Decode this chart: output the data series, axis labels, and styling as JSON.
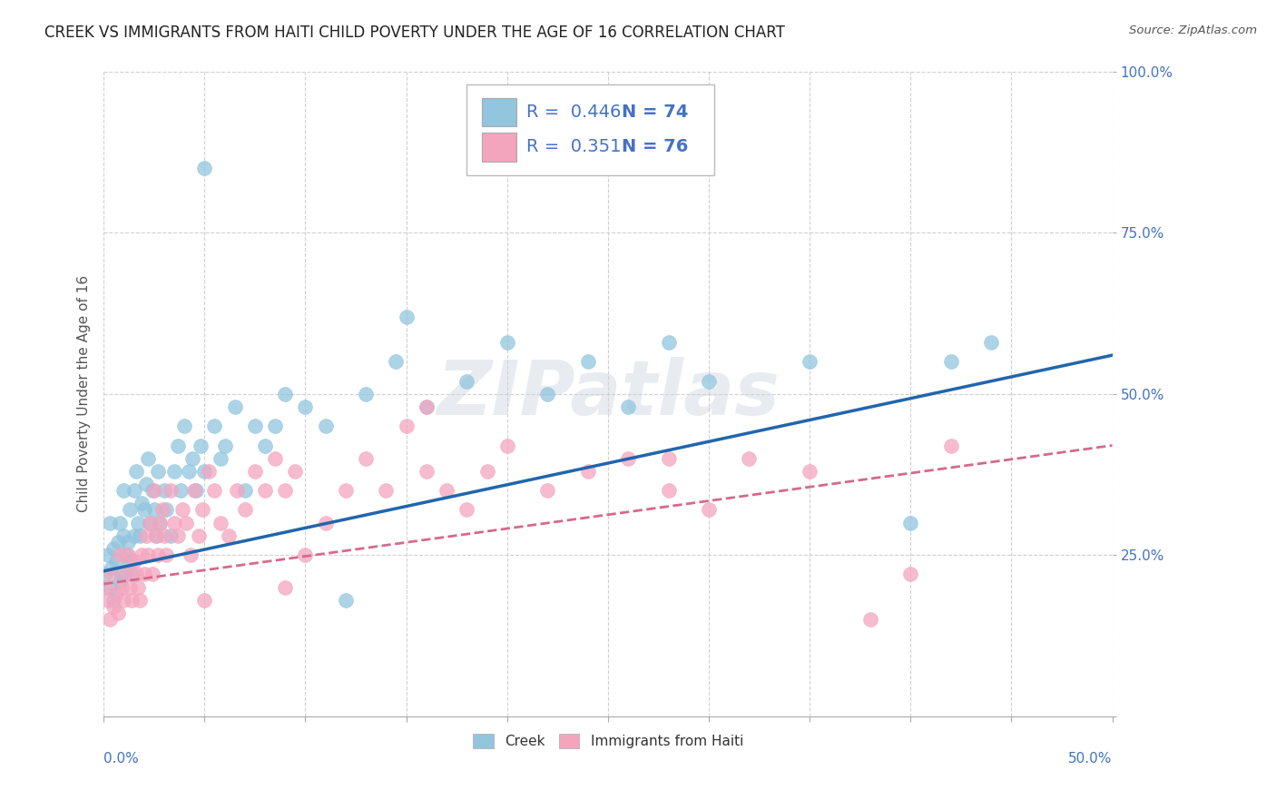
{
  "title": "CREEK VS IMMIGRANTS FROM HAITI CHILD POVERTY UNDER THE AGE OF 16 CORRELATION CHART",
  "source": "Source: ZipAtlas.com",
  "ylabel": "Child Poverty Under the Age of 16",
  "xlim": [
    0,
    0.5
  ],
  "ylim": [
    0,
    1.0
  ],
  "creek_color": "#92c5de",
  "haiti_color": "#f4a5be",
  "creek_line_color": "#2166ac",
  "haiti_line_color": "#d6698a",
  "axis_label_color": "#4472c4",
  "background_color": "#ffffff",
  "watermark": "ZIPatlas",
  "creek_scatter_x": [
    0.001,
    0.002,
    0.003,
    0.003,
    0.004,
    0.005,
    0.005,
    0.006,
    0.007,
    0.008,
    0.008,
    0.009,
    0.01,
    0.01,
    0.011,
    0.012,
    0.013,
    0.013,
    0.014,
    0.015,
    0.015,
    0.016,
    0.017,
    0.018,
    0.019,
    0.02,
    0.021,
    0.022,
    0.023,
    0.024,
    0.025,
    0.026,
    0.027,
    0.028,
    0.03,
    0.031,
    0.033,
    0.035,
    0.037,
    0.038,
    0.04,
    0.042,
    0.044,
    0.046,
    0.048,
    0.05,
    0.055,
    0.058,
    0.06,
    0.065,
    0.07,
    0.075,
    0.08,
    0.085,
    0.09,
    0.1,
    0.11,
    0.12,
    0.13,
    0.145,
    0.16,
    0.18,
    0.2,
    0.22,
    0.24,
    0.26,
    0.28,
    0.3,
    0.35,
    0.4,
    0.42,
    0.44,
    0.05,
    0.15
  ],
  "creek_scatter_y": [
    0.22,
    0.25,
    0.2,
    0.3,
    0.23,
    0.26,
    0.18,
    0.24,
    0.27,
    0.21,
    0.3,
    0.22,
    0.28,
    0.35,
    0.25,
    0.27,
    0.32,
    0.24,
    0.22,
    0.28,
    0.35,
    0.38,
    0.3,
    0.28,
    0.33,
    0.32,
    0.36,
    0.4,
    0.3,
    0.35,
    0.32,
    0.28,
    0.38,
    0.3,
    0.35,
    0.32,
    0.28,
    0.38,
    0.42,
    0.35,
    0.45,
    0.38,
    0.4,
    0.35,
    0.42,
    0.38,
    0.45,
    0.4,
    0.42,
    0.48,
    0.35,
    0.45,
    0.42,
    0.45,
    0.5,
    0.48,
    0.45,
    0.18,
    0.5,
    0.55,
    0.48,
    0.52,
    0.58,
    0.5,
    0.55,
    0.48,
    0.58,
    0.52,
    0.55,
    0.3,
    0.55,
    0.58,
    0.85,
    0.62
  ],
  "haiti_scatter_x": [
    0.001,
    0.002,
    0.003,
    0.004,
    0.005,
    0.006,
    0.007,
    0.008,
    0.009,
    0.01,
    0.011,
    0.012,
    0.013,
    0.014,
    0.015,
    0.016,
    0.017,
    0.018,
    0.019,
    0.02,
    0.021,
    0.022,
    0.023,
    0.024,
    0.025,
    0.026,
    0.027,
    0.028,
    0.029,
    0.03,
    0.031,
    0.033,
    0.035,
    0.037,
    0.039,
    0.041,
    0.043,
    0.045,
    0.047,
    0.049,
    0.052,
    0.055,
    0.058,
    0.062,
    0.066,
    0.07,
    0.075,
    0.08,
    0.085,
    0.09,
    0.095,
    0.1,
    0.11,
    0.12,
    0.13,
    0.14,
    0.15,
    0.16,
    0.17,
    0.18,
    0.19,
    0.2,
    0.22,
    0.24,
    0.26,
    0.28,
    0.3,
    0.32,
    0.35,
    0.38,
    0.4,
    0.42,
    0.16,
    0.28,
    0.05,
    0.09
  ],
  "haiti_scatter_y": [
    0.2,
    0.18,
    0.15,
    0.22,
    0.17,
    0.19,
    0.16,
    0.25,
    0.2,
    0.18,
    0.22,
    0.25,
    0.2,
    0.18,
    0.24,
    0.22,
    0.2,
    0.18,
    0.25,
    0.22,
    0.28,
    0.25,
    0.3,
    0.22,
    0.35,
    0.28,
    0.25,
    0.3,
    0.32,
    0.28,
    0.25,
    0.35,
    0.3,
    0.28,
    0.32,
    0.3,
    0.25,
    0.35,
    0.28,
    0.32,
    0.38,
    0.35,
    0.3,
    0.28,
    0.35,
    0.32,
    0.38,
    0.35,
    0.4,
    0.35,
    0.38,
    0.25,
    0.3,
    0.35,
    0.4,
    0.35,
    0.45,
    0.38,
    0.35,
    0.32,
    0.38,
    0.42,
    0.35,
    0.38,
    0.4,
    0.35,
    0.32,
    0.4,
    0.38,
    0.15,
    0.22,
    0.42,
    0.48,
    0.4,
    0.18,
    0.2
  ],
  "creek_line_x": [
    0.0,
    0.5
  ],
  "creek_line_y": [
    0.225,
    0.56
  ],
  "haiti_line_x": [
    0.0,
    0.5
  ],
  "haiti_line_y": [
    0.205,
    0.42
  ],
  "grid_color": "#d0d0d0",
  "title_fontsize": 12,
  "axis_tick_fontsize": 11,
  "legend_fontsize": 14
}
